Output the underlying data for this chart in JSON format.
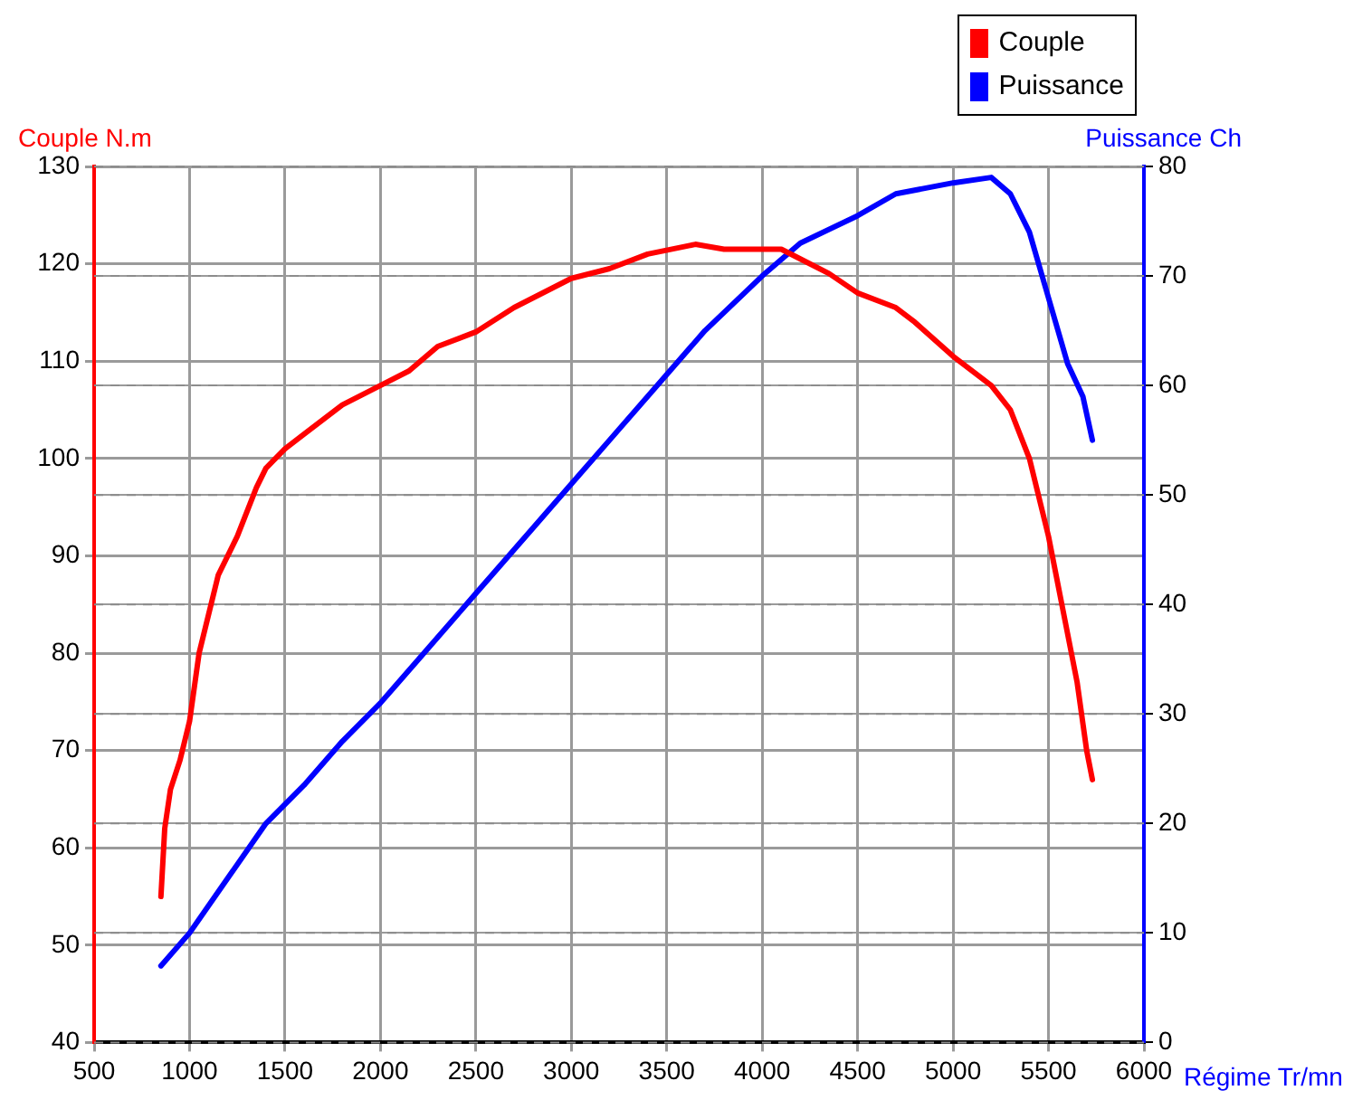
{
  "chart_data": {
    "type": "line",
    "xlabel": "Régime Tr/mn",
    "ylabel": "Couple N.m",
    "y2label": "Puissance Ch",
    "xlim": [
      500,
      6000
    ],
    "xticks": [
      500,
      1000,
      1500,
      2000,
      2500,
      3000,
      3500,
      4000,
      4500,
      5000,
      5500,
      6000
    ],
    "ylim": [
      40,
      130
    ],
    "yticks": [
      40,
      50,
      60,
      70,
      80,
      90,
      100,
      110,
      120,
      130
    ],
    "y2lim": [
      0,
      80
    ],
    "y2ticks": [
      0,
      10,
      20,
      30,
      40,
      50,
      60,
      70,
      80
    ],
    "grid": true,
    "legend": "top right",
    "marker": "none",
    "line_style": "solid",
    "series": [
      {
        "name": "Couple",
        "color": "#ff0000",
        "axis": "y",
        "x": [
          850,
          870,
          900,
          950,
          1000,
          1050,
          1100,
          1150,
          1250,
          1350,
          1400,
          1500,
          1600,
          1800,
          2000,
          2150,
          2300,
          2500,
          2700,
          2900,
          3000,
          3200,
          3400,
          3650,
          3800,
          4100,
          4200,
          4350,
          4500,
          4700,
          4800,
          5000,
          5200,
          5300,
          5400,
          5500,
          5600,
          5650,
          5700,
          5730
        ],
        "values": [
          55,
          62,
          66,
          69,
          73,
          80,
          84,
          88,
          92,
          97,
          99,
          101,
          102.5,
          105.5,
          107.5,
          109,
          111.5,
          113,
          115.5,
          117.5,
          118.5,
          119.5,
          121,
          122,
          121.5,
          121.5,
          120.5,
          119,
          117,
          115.5,
          114,
          110.5,
          107.5,
          105,
          100,
          92,
          82,
          77,
          70,
          67
        ]
      },
      {
        "name": "Puissance",
        "color": "#0000ff",
        "axis": "y2",
        "x": [
          850,
          1000,
          1200,
          1400,
          1600,
          1800,
          2000,
          2200,
          2500,
          2800,
          3000,
          3200,
          3500,
          3700,
          4000,
          4200,
          4500,
          4700,
          5000,
          5200,
          5300,
          5400,
          5500,
          5600,
          5680,
          5730
        ],
        "values": [
          7,
          10,
          15,
          20,
          23.5,
          27.5,
          31,
          35,
          41,
          47,
          51,
          55,
          61,
          65,
          70,
          73,
          75.5,
          77.5,
          78.5,
          79,
          77.5,
          74,
          68,
          62,
          59,
          55
        ]
      }
    ]
  }
}
